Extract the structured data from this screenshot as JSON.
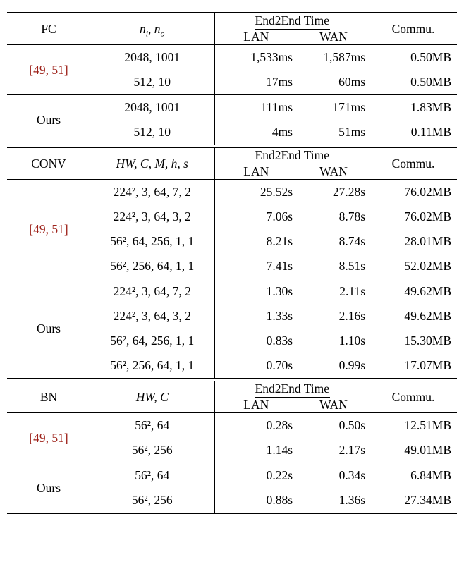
{
  "labels": {
    "end2end": "End2End Time",
    "lan": "LAN",
    "wan": "WAN",
    "commu": "Commu."
  },
  "colors": {
    "citation": "#9e231b",
    "rule": "#000000"
  },
  "sections": [
    {
      "name": "FC",
      "param_header_parts": [
        {
          "t": "n"
        },
        {
          "t": "i",
          "sub": true
        },
        {
          "t": ", n"
        },
        {
          "t": "o",
          "sub": true
        }
      ],
      "groups": [
        {
          "label": "[49, 51]",
          "citation": true,
          "rows": [
            {
              "params": "2048, 1001",
              "lan": "1,533ms",
              "wan": "1,587ms",
              "commu": "0.50MB"
            },
            {
              "params": "512, 10",
              "lan": "17ms",
              "wan": "60ms",
              "commu": "0.50MB"
            }
          ]
        },
        {
          "label": "Ours",
          "citation": false,
          "rows": [
            {
              "params": "2048, 1001",
              "lan": "111ms",
              "wan": "171ms",
              "commu": "1.83MB"
            },
            {
              "params": "512, 10",
              "lan": "4ms",
              "wan": "51ms",
              "commu": "0.11MB"
            }
          ]
        }
      ]
    },
    {
      "name": "CONV",
      "param_header_parts": [
        {
          "t": "HW, C, M, h, s"
        }
      ],
      "groups": [
        {
          "label": "[49, 51]",
          "citation": true,
          "rows": [
            {
              "params": "224², 3, 64, 7, 2",
              "lan": "25.52s",
              "wan": "27.28s",
              "commu": "76.02MB"
            },
            {
              "params": "224², 3, 64, 3, 2",
              "lan": "7.06s",
              "wan": "8.78s",
              "commu": "76.02MB"
            },
            {
              "params": "56², 64, 256, 1, 1",
              "lan": "8.21s",
              "wan": "8.74s",
              "commu": "28.01MB"
            },
            {
              "params": "56², 256, 64, 1, 1",
              "lan": "7.41s",
              "wan": "8.51s",
              "commu": "52.02MB"
            }
          ]
        },
        {
          "label": "Ours",
          "citation": false,
          "rows": [
            {
              "params": "224², 3, 64, 7, 2",
              "lan": "1.30s",
              "wan": "2.11s",
              "commu": "49.62MB"
            },
            {
              "params": "224², 3, 64, 3, 2",
              "lan": "1.33s",
              "wan": "2.16s",
              "commu": "49.62MB"
            },
            {
              "params": "56², 64, 256, 1, 1",
              "lan": "0.83s",
              "wan": "1.10s",
              "commu": "15.30MB"
            },
            {
              "params": "56², 256, 64, 1, 1",
              "lan": "0.70s",
              "wan": "0.99s",
              "commu": "17.07MB"
            }
          ]
        }
      ]
    },
    {
      "name": "BN",
      "param_header_parts": [
        {
          "t": "HW, C"
        }
      ],
      "groups": [
        {
          "label": "[49, 51]",
          "citation": true,
          "rows": [
            {
              "params": "56², 64",
              "lan": "0.28s",
              "wan": "0.50s",
              "commu": "12.51MB"
            },
            {
              "params": "56², 256",
              "lan": "1.14s",
              "wan": "2.17s",
              "commu": "49.01MB"
            }
          ]
        },
        {
          "label": "Ours",
          "citation": false,
          "rows": [
            {
              "params": "56², 64",
              "lan": "0.22s",
              "wan": "0.34s",
              "commu": "6.84MB"
            },
            {
              "params": "56², 256",
              "lan": "0.88s",
              "wan": "1.36s",
              "commu": "27.34MB"
            }
          ]
        }
      ]
    }
  ]
}
